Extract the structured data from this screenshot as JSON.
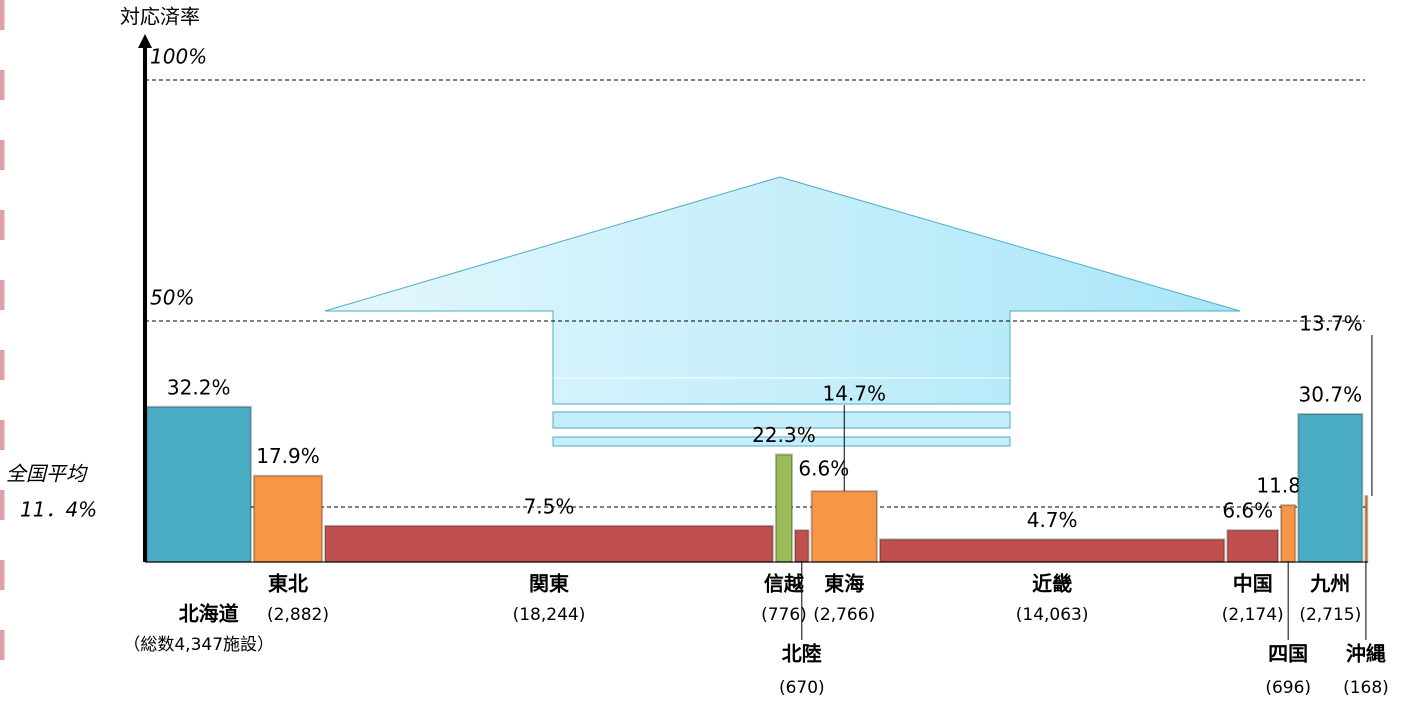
{
  "chart_data": {
    "type": "variwide",
    "y_axis_label": "対応済率",
    "categories": [
      "北海道",
      "東北",
      "関東",
      "信越",
      "北陸",
      "東海",
      "近畿",
      "中国",
      "四国",
      "九州",
      "沖縄"
    ],
    "values": [
      32.2,
      17.9,
      7.5,
      22.3,
      6.6,
      14.7,
      4.7,
      6.6,
      11.8,
      30.7,
      13.7
    ],
    "value_labels": [
      "32.2%",
      "17.9%",
      "7.5%",
      "22.3%",
      "6.6%",
      "14.7%",
      "4.7%",
      "6.6%",
      "11.8%",
      "30.7%",
      "13.7%"
    ],
    "counts": [
      4347,
      2882,
      18244,
      776,
      670,
      2766,
      14063,
      2174,
      696,
      2715,
      168
    ],
    "count_labels": [
      "（総数4,347施設）",
      "(2,882)",
      "(18,244)",
      "(776)",
      "(670)",
      "(2,766)",
      "(14,063)",
      "(2,174)",
      "(696)",
      "(2,715)",
      "(168)"
    ],
    "colors": [
      "#4bacc6",
      "#f79646",
      "#c0504d",
      "#9bbb59",
      "#c0504d",
      "#f79646",
      "#c0504d",
      "#c0504d",
      "#f79646",
      "#4bacc6",
      "#f79646"
    ],
    "ylim": [
      0,
      100
    ],
    "yticks": [
      {
        "value": 50,
        "label": "50%"
      },
      {
        "value": 100,
        "label": "100%"
      }
    ],
    "average": {
      "value": 11.4,
      "name": "全国平均",
      "label": "11．4%"
    },
    "grid": true
  }
}
